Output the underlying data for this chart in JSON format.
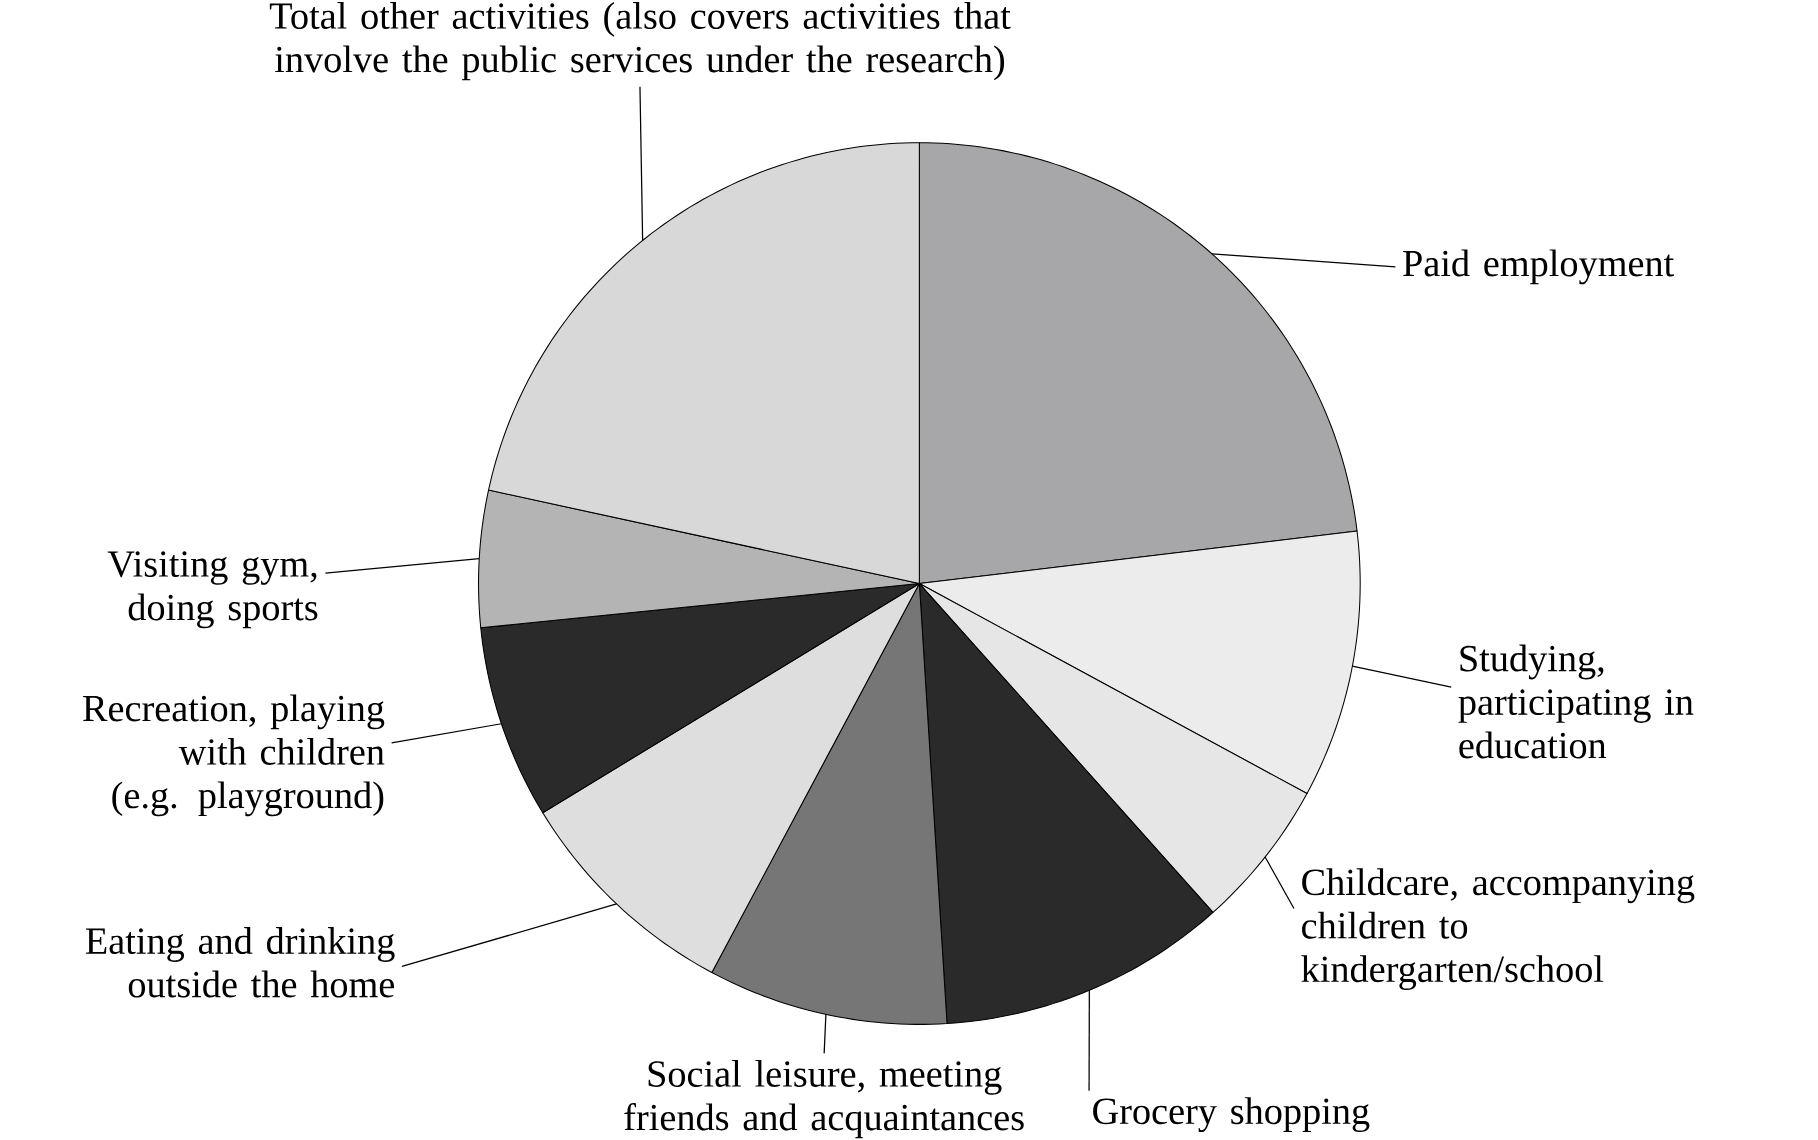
{
  "chart_data": {
    "type": "pie",
    "categories": [
      "Paid employment",
      "Studying, participating in education",
      "Childcare, accompanying children to kindergarten/school",
      "Grocery shopping",
      "Social leisure, meeting friends and acquaintances",
      "Eating and drinking outside the home",
      "Recreation, playing with children (e.g. playground)",
      "Visiting gym, doing sports",
      "Total other activities (also covers activities that involve the public services under the research)"
    ],
    "values": [
      23.1,
      9.8,
      5.5,
      10.6,
      8.8,
      8.5,
      7.1,
      5.0,
      21.6
    ],
    "colors": [
      "#a7a6a8",
      "#ececec",
      "#e6e6e6",
      "#2a2a2a",
      "#767676",
      "#dedede",
      "#2a2a2a",
      "#b4b4b4",
      "#d8d8d8"
    ]
  }
}
